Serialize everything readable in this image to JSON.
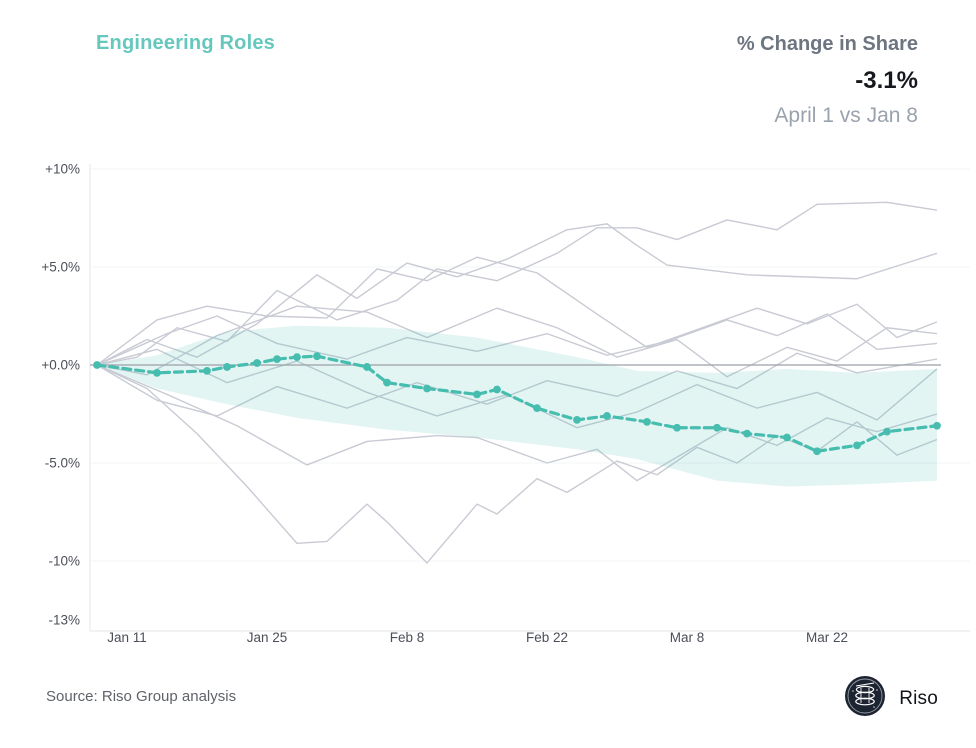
{
  "header": {
    "title": "Engineering Roles",
    "metric_label": "% Change in Share",
    "metric_value": "-3.1%",
    "comparison": "April 1 vs Jan 8"
  },
  "footer": {
    "source": "Source: Riso Group analysis",
    "brand": "Riso"
  },
  "colors": {
    "accent_teal": "#47bdaf",
    "title_teal": "#66c8bc",
    "band_fill": "rgba(77,192,178,0.16)",
    "gray_line": "#c9cbd4",
    "zero_line": "#9ba1a9",
    "grid_line": "#f3f4f6",
    "axis_line": "#e4e6ea",
    "tick_text": "#4b4f58",
    "logo_bg": "#1c2331"
  },
  "chart_data": {
    "type": "line",
    "title": "Engineering Roles",
    "subtitle": "% Change in Share, April 1 vs Jan 8",
    "final_change_pct": -3.1,
    "x_axis": {
      "start_date": "Jan 8",
      "end_date": "April 1",
      "domain_days": [
        0,
        84
      ],
      "tick_days": [
        3,
        17,
        31,
        45,
        59,
        73
      ],
      "tick_labels": [
        "Jan 11",
        "Jan 25",
        "Feb 8",
        "Feb 22",
        "Mar 8",
        "Mar 22"
      ]
    },
    "y_axis": {
      "unit": "% change in share",
      "range": [
        -13.5,
        10.3
      ],
      "tick_values": [
        10,
        5,
        0,
        -5,
        -10,
        -13
      ],
      "tick_labels": [
        "+10%",
        "+5.0%",
        "+0.0%",
        "-5.0%",
        "-10%",
        "-13%"
      ],
      "grid_values": [
        10,
        5,
        -5,
        -10
      ]
    },
    "highlight_series": {
      "name": "Engineering Roles",
      "style": "dashed-with-dots",
      "points": [
        [
          0,
          0.0
        ],
        [
          6,
          -0.4
        ],
        [
          11,
          -0.3
        ],
        [
          13,
          -0.1
        ],
        [
          16,
          0.1
        ],
        [
          18,
          0.3
        ],
        [
          20,
          0.4
        ],
        [
          22,
          0.45
        ],
        [
          27,
          -0.1
        ],
        [
          29,
          -0.9
        ],
        [
          33,
          -1.2
        ],
        [
          38,
          -1.5
        ],
        [
          40,
          -1.25
        ],
        [
          44,
          -2.2
        ],
        [
          48,
          -2.8
        ],
        [
          51,
          -2.6
        ],
        [
          55,
          -2.9
        ],
        [
          58,
          -3.2
        ],
        [
          62,
          -3.2
        ],
        [
          65,
          -3.5
        ],
        [
          69,
          -3.7
        ],
        [
          72,
          -4.4
        ],
        [
          76,
          -4.1
        ],
        [
          79,
          -3.4
        ],
        [
          84,
          -3.1
        ]
      ]
    },
    "confidence_band": {
      "days": [
        0,
        6,
        13,
        20,
        29,
        38,
        48,
        54,
        62,
        69,
        76,
        84
      ],
      "top": [
        0,
        0.5,
        1.7,
        2.0,
        1.9,
        1.4,
        0.4,
        -0.3,
        -0.4,
        -0.2,
        -0.4,
        -0.2
      ],
      "bottom": [
        0,
        -1.2,
        -2.0,
        -2.7,
        -3.3,
        -3.7,
        -4.3,
        -4.8,
        -5.9,
        -6.2,
        -6.1,
        -5.9
      ]
    },
    "background_series": [
      {
        "points": [
          [
            0,
            0
          ],
          [
            4,
            0.4
          ],
          [
            8,
            1.9
          ],
          [
            13,
            1.2
          ],
          [
            18,
            3.8
          ],
          [
            24,
            2.3
          ],
          [
            30,
            3.3
          ],
          [
            34,
            4.9
          ],
          [
            40,
            4.3
          ],
          [
            46,
            5.7
          ],
          [
            50,
            7.0
          ],
          [
            54,
            7.0
          ],
          [
            58,
            6.4
          ],
          [
            63,
            7.4
          ],
          [
            68,
            6.9
          ],
          [
            72,
            8.2
          ],
          [
            79,
            8.3
          ],
          [
            84,
            7.9
          ]
        ]
      },
      {
        "points": [
          [
            0,
            0
          ],
          [
            5,
            1.3
          ],
          [
            10,
            0.4
          ],
          [
            16,
            2.1
          ],
          [
            22,
            4.6
          ],
          [
            26,
            3.4
          ],
          [
            31,
            5.2
          ],
          [
            36,
            4.5
          ],
          [
            41,
            5.4
          ],
          [
            47,
            6.9
          ],
          [
            51,
            7.2
          ],
          [
            54,
            6.1
          ],
          [
            57,
            5.1
          ],
          [
            65,
            4.6
          ],
          [
            76,
            4.4
          ],
          [
            84,
            5.7
          ]
        ]
      },
      {
        "points": [
          [
            0,
            0
          ],
          [
            6,
            2.3
          ],
          [
            11,
            3.0
          ],
          [
            17,
            2.5
          ],
          [
            23,
            2.4
          ],
          [
            28,
            4.9
          ],
          [
            33,
            4.3
          ],
          [
            38,
            5.5
          ],
          [
            44,
            4.7
          ],
          [
            50,
            2.6
          ],
          [
            55,
            0.9
          ],
          [
            60,
            1.8
          ],
          [
            66,
            2.9
          ],
          [
            71,
            2.1
          ],
          [
            76,
            3.1
          ],
          [
            80,
            1.4
          ],
          [
            84,
            2.2
          ]
        ]
      },
      {
        "points": [
          [
            0,
            0
          ],
          [
            5,
            -0.5
          ],
          [
            12,
            1.5
          ],
          [
            20,
            3.0
          ],
          [
            27,
            2.7
          ],
          [
            33,
            1.4
          ],
          [
            40,
            2.9
          ],
          [
            46,
            1.9
          ],
          [
            52,
            0.4
          ],
          [
            58,
            1.3
          ],
          [
            63,
            -0.6
          ],
          [
            69,
            0.9
          ],
          [
            74,
            0.2
          ],
          [
            79,
            1.9
          ],
          [
            84,
            1.6
          ]
        ]
      },
      {
        "points": [
          [
            0,
            0
          ],
          [
            7,
            1.6
          ],
          [
            12,
            2.5
          ],
          [
            18,
            1.1
          ],
          [
            25,
            0.3
          ],
          [
            31,
            1.4
          ],
          [
            38,
            0.7
          ],
          [
            45,
            1.6
          ],
          [
            51,
            0.5
          ],
          [
            57,
            1.2
          ],
          [
            63,
            2.3
          ],
          [
            68,
            1.5
          ],
          [
            73,
            2.6
          ],
          [
            78,
            0.8
          ],
          [
            84,
            1.1
          ]
        ]
      },
      {
        "points": [
          [
            0,
            0
          ],
          [
            6,
            -1.8
          ],
          [
            12,
            -2.6
          ],
          [
            18,
            -1.1
          ],
          [
            25,
            -2.2
          ],
          [
            32,
            -0.9
          ],
          [
            39,
            -2.0
          ],
          [
            45,
            -0.8
          ],
          [
            52,
            -1.6
          ],
          [
            58,
            -0.3
          ],
          [
            64,
            -1.2
          ],
          [
            70,
            0.6
          ],
          [
            76,
            -0.4
          ],
          [
            84,
            0.3
          ]
        ]
      },
      {
        "points": [
          [
            0,
            0
          ],
          [
            6,
            0.8
          ],
          [
            13,
            -0.9
          ],
          [
            20,
            0.2
          ],
          [
            27,
            -1.4
          ],
          [
            34,
            -2.6
          ],
          [
            41,
            -1.5
          ],
          [
            48,
            -3.2
          ],
          [
            54,
            -2.4
          ],
          [
            60,
            -1.0
          ],
          [
            66,
            -2.2
          ],
          [
            72,
            -1.4
          ],
          [
            78,
            -2.8
          ],
          [
            84,
            -0.2
          ]
        ]
      },
      {
        "points": [
          [
            0,
            0
          ],
          [
            5,
            -1.2
          ],
          [
            10,
            -3.5
          ],
          [
            15,
            -6.2
          ],
          [
            20,
            -9.1
          ],
          [
            23,
            -9.0
          ],
          [
            27,
            -7.1
          ],
          [
            29,
            -8.0
          ],
          [
            33,
            -10.1
          ],
          [
            38,
            -7.1
          ],
          [
            40,
            -7.6
          ],
          [
            44,
            -5.8
          ],
          [
            47,
            -6.5
          ],
          [
            52,
            -4.9
          ],
          [
            56,
            -5.6
          ],
          [
            60,
            -4.2
          ],
          [
            64,
            -5.0
          ],
          [
            68,
            -3.6
          ],
          [
            72,
            -4.4
          ],
          [
            76,
            -2.9
          ],
          [
            80,
            -4.6
          ],
          [
            84,
            -3.8
          ]
        ]
      },
      {
        "points": [
          [
            0,
            0
          ],
          [
            7,
            -1.5
          ],
          [
            14,
            -3.1
          ],
          [
            21,
            -5.1
          ],
          [
            27,
            -3.9
          ],
          [
            34,
            -3.6
          ],
          [
            38,
            -3.7
          ],
          [
            45,
            -5.0
          ],
          [
            50,
            -4.3
          ],
          [
            54,
            -5.9
          ],
          [
            58,
            -4.7
          ],
          [
            63,
            -3.2
          ],
          [
            68,
            -4.1
          ],
          [
            73,
            -2.7
          ],
          [
            78,
            -3.4
          ],
          [
            84,
            -2.5
          ]
        ]
      }
    ]
  }
}
